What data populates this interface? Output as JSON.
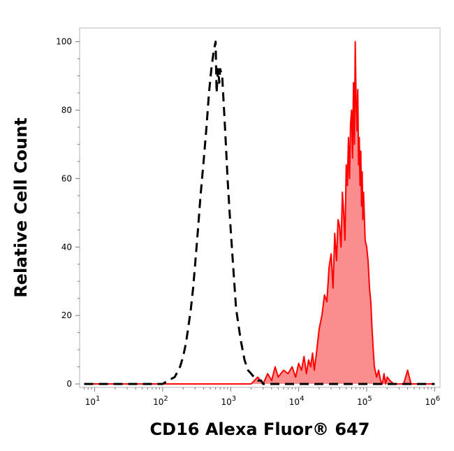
{
  "chart_data": {
    "type": "area",
    "title": "",
    "xlabel": "CD16 Alexa Fluor® 647",
    "ylabel": "Relative Cell Count",
    "x_scale": "log",
    "xlim": [
      6,
      1200000
    ],
    "ylim": [
      -1,
      104
    ],
    "x_ticks": [
      {
        "value": 10,
        "base": "10",
        "exp": "1"
      },
      {
        "value": 100,
        "base": "10",
        "exp": "2"
      },
      {
        "value": 1000,
        "base": "10",
        "exp": "3"
      },
      {
        "value": 10000,
        "base": "10",
        "exp": "4"
      },
      {
        "value": 100000,
        "base": "10",
        "exp": "5"
      },
      {
        "value": 1000000,
        "base": "10",
        "exp": "6"
      }
    ],
    "y_ticks": [
      {
        "value": 0,
        "label": "0"
      },
      {
        "value": 20,
        "label": "20"
      },
      {
        "value": 40,
        "label": "40"
      },
      {
        "value": 60,
        "label": "60"
      },
      {
        "value": 80,
        "label": "80"
      },
      {
        "value": 100,
        "label": "100"
      }
    ],
    "grid": false,
    "legend": "none",
    "colors": {
      "control": "#000000",
      "stained_line": "#ff0000",
      "stained_fill": "#fa8e8e"
    },
    "series": [
      {
        "style": "dashed",
        "x": [
          7,
          100,
          120,
          150,
          180,
          200,
          220,
          240,
          260,
          280,
          300,
          330,
          360,
          400,
          440,
          480,
          520,
          560,
          600,
          620,
          650,
          680,
          700,
          750,
          800,
          850,
          900,
          1000,
          1100,
          1200,
          1400,
          1600,
          1800,
          2000,
          2200,
          2500,
          2800,
          3000,
          1000000
        ],
        "y": [
          0,
          0,
          1,
          2,
          5,
          8,
          12,
          17,
          22,
          28,
          35,
          45,
          55,
          65,
          75,
          85,
          92,
          97,
          100,
          85,
          92,
          88,
          92,
          90,
          80,
          70,
          60,
          45,
          33,
          22,
          13,
          7,
          4,
          3,
          2,
          1,
          1,
          0,
          0
        ]
      },
      {
        "style": "filled",
        "x": [
          7,
          2000,
          2500,
          3000,
          3500,
          4000,
          4500,
          5000,
          6000,
          7000,
          8000,
          9000,
          10000,
          11000,
          12000,
          13000,
          14000,
          15000,
          16000,
          17000,
          18000,
          19000,
          20000,
          22000,
          24000,
          26000,
          28000,
          30000,
          32000,
          34000,
          36000,
          38000,
          40000,
          42000,
          44000,
          46000,
          48000,
          50000,
          52000,
          54000,
          56000,
          58000,
          60000,
          62000,
          64000,
          66000,
          68000,
          70000,
          72000,
          74000,
          76000,
          78000,
          80000,
          82000,
          84000,
          86000,
          88000,
          90000,
          95000,
          100000,
          105000,
          110000,
          115000,
          120000,
          125000,
          130000,
          140000,
          150000,
          160000,
          170000,
          180000,
          190000,
          200000,
          220000,
          250000,
          300000,
          350000,
          400000,
          450000,
          500000,
          1000000
        ],
        "y": [
          0,
          0,
          2,
          0,
          3,
          1,
          5,
          2,
          4,
          3,
          5,
          2,
          6,
          4,
          8,
          3,
          7,
          5,
          9,
          4,
          8,
          12,
          16,
          20,
          26,
          24,
          34,
          38,
          28,
          44,
          36,
          48,
          46,
          40,
          56,
          50,
          42,
          64,
          58,
          72,
          60,
          76,
          80,
          66,
          88,
          70,
          100,
          82,
          74,
          86,
          64,
          72,
          58,
          68,
          52,
          62,
          48,
          56,
          42,
          40,
          36,
          28,
          24,
          16,
          10,
          5,
          2,
          4,
          1,
          0,
          3,
          0,
          2,
          1,
          0,
          0,
          0,
          4,
          0,
          0,
          0
        ]
      }
    ]
  }
}
